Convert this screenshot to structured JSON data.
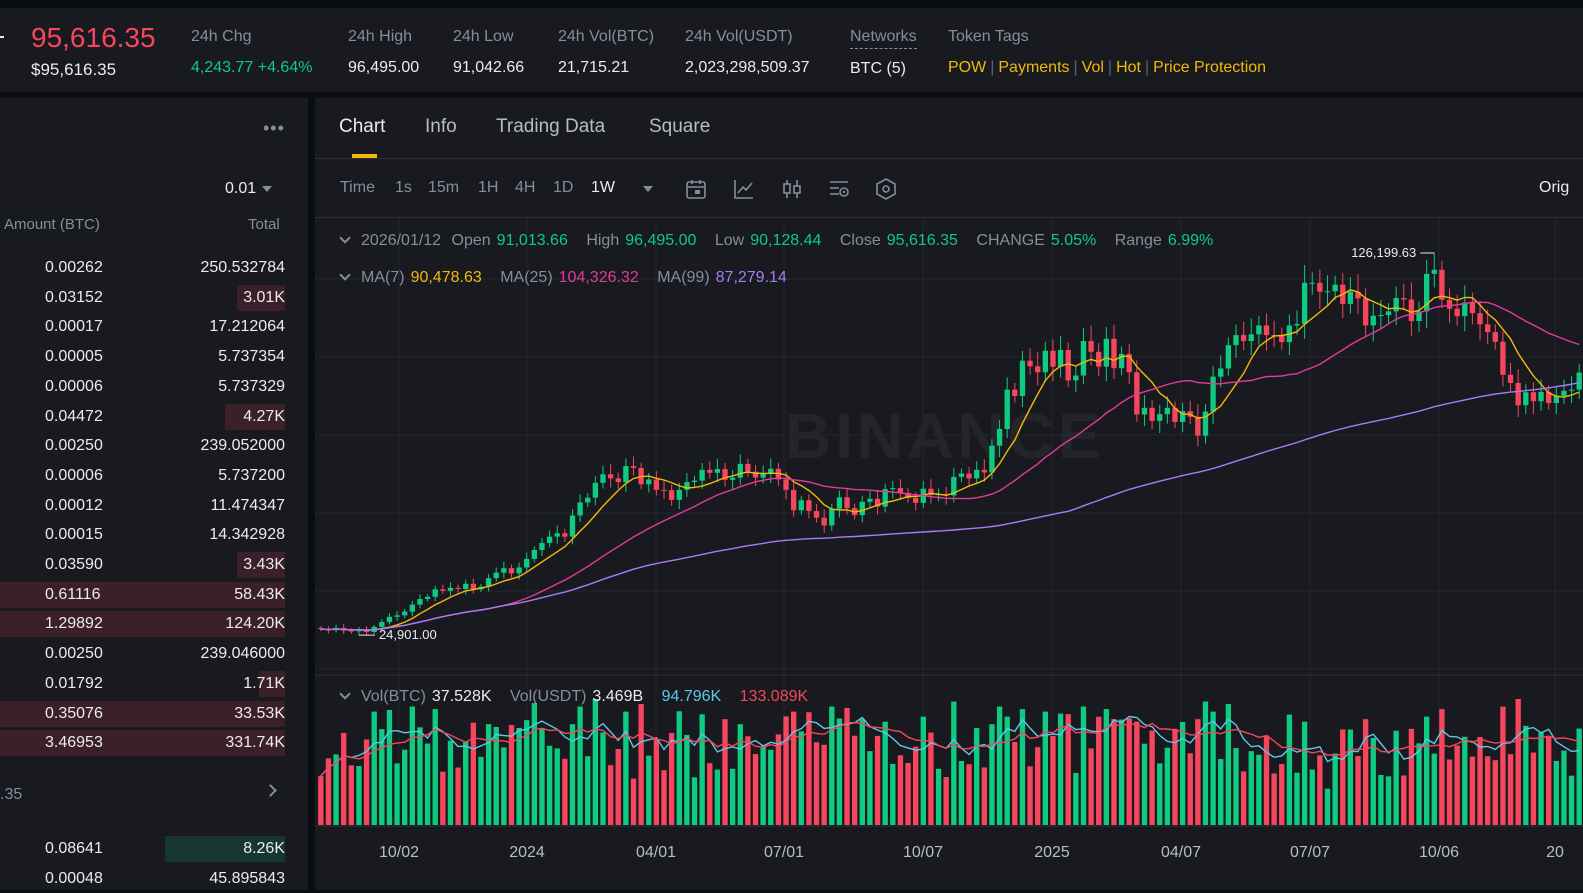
{
  "ticker": {
    "last_price": "95,616.35",
    "last_price_usd": "$95,616.35",
    "stats": [
      {
        "label": "24h Chg",
        "value": "4,243.77 +4.64%"
      },
      {
        "label": "24h High",
        "value": "96,495.00"
      },
      {
        "label": "24h Low",
        "value": "91,042.66"
      },
      {
        "label": "24h Vol(BTC)",
        "value": "21,715.21"
      },
      {
        "label": "24h Vol(USDT)",
        "value": "2,023,298,509.37"
      },
      {
        "label": "Networks",
        "value": "BTC (5)"
      },
      {
        "label": "Token Tags",
        "value": ""
      }
    ],
    "tags": [
      "POW",
      "Payments",
      "Vol",
      "Hot",
      "Price Protection"
    ]
  },
  "orderbook": {
    "menu_icon": "more-icon",
    "precision": "0.01",
    "col_amount": "Amount (BTC)",
    "col_total": "Total",
    "asks": [
      {
        "amount": "0.00262",
        "total": "250.532784",
        "depth": 0
      },
      {
        "amount": "0.03152",
        "total": "3.01K",
        "depth": 0.17
      },
      {
        "amount": "0.00017",
        "total": "17.212064",
        "depth": 0
      },
      {
        "amount": "0.00005",
        "total": "5.737354",
        "depth": 0
      },
      {
        "amount": "0.00006",
        "total": "5.737329",
        "depth": 0
      },
      {
        "amount": "0.04472",
        "total": "4.27K",
        "depth": 0.21
      },
      {
        "amount": "0.00250",
        "total": "239.052000",
        "depth": 0
      },
      {
        "amount": "0.00006",
        "total": "5.737200",
        "depth": 0
      },
      {
        "amount": "0.00012",
        "total": "11.474347",
        "depth": 0
      },
      {
        "amount": "0.00015",
        "total": "14.342928",
        "depth": 0
      },
      {
        "amount": "0.03590",
        "total": "3.43K",
        "depth": 0.17
      },
      {
        "amount": "0.61116",
        "total": "58.43K",
        "depth": 1
      },
      {
        "amount": "1.29892",
        "total": "124.20K",
        "depth": 1
      },
      {
        "amount": "0.00250",
        "total": "239.046000",
        "depth": 0
      },
      {
        "amount": "0.01792",
        "total": "1.71K",
        "depth": 0.09
      },
      {
        "amount": "0.35076",
        "total": "33.53K",
        "depth": 1
      },
      {
        "amount": "3.46953",
        "total": "331.74K",
        "depth": 1
      }
    ],
    "mid_price_fragment": ".35",
    "bids": [
      {
        "amount": "0.08641",
        "total": "8.26K",
        "depth": 0.42
      },
      {
        "amount": "0.00048",
        "total": "45.895843",
        "depth": 0
      }
    ]
  },
  "chart_panel": {
    "tabs": [
      "Chart",
      "Info",
      "Trading Data",
      "Square"
    ],
    "active_tab": "Chart",
    "timeframes": [
      "Time",
      "1s",
      "15m",
      "1H",
      "4H",
      "1D",
      "1W"
    ],
    "active_timeframe": "1W",
    "tool_icons": [
      "calendar-icon",
      "line-chart-icon",
      "candlestick-icon",
      "indicator-settings-icon",
      "hexagon-settings-icon"
    ],
    "view_mode": "Orig",
    "ohlc": {
      "date": "2026/01/12",
      "open_label": "Open",
      "open": "91,013.66",
      "high_label": "High",
      "high": "96,495.00",
      "low_label": "Low",
      "low": "90,128.44",
      "close_label": "Close",
      "close": "95,616.35",
      "change_label": "CHANGE",
      "change": "5.05%",
      "range_label": "Range",
      "range": "6.99%"
    },
    "ma": {
      "ma7_label": "MA(7)",
      "ma7": "90,478.63",
      "ma25_label": "MA(25)",
      "ma25": "104,326.32",
      "ma99_label": "MA(99)",
      "ma99": "87,279.14"
    },
    "volume_legend": {
      "label": "Vol(BTC)",
      "btc": "37.528K",
      "usdt_label": "Vol(USDT)",
      "usdt": "3.469B",
      "ma_a": "94.796K",
      "ma_b": "133.089K"
    },
    "annotations": {
      "max": "126,199.63",
      "min": "24,901.00"
    },
    "watermark": "BINANCE",
    "colors": {
      "up": "#0ecb81",
      "down": "#f6465d",
      "ma7": "#f0b90b",
      "ma25": "#e6399b",
      "ma99": "#a97cf2",
      "vol_ma_a": "#5ec8e8",
      "vol_ma_b": "#f6465d"
    }
  },
  "chart_data": {
    "type": "candlestick",
    "interval": "1W",
    "x_tick_labels": [
      "10/02",
      "2024",
      "04/01",
      "07/01",
      "10/07",
      "2025",
      "04/07",
      "07/07",
      "10/06",
      "20"
    ],
    "y_range": [
      20000,
      130000
    ],
    "closes": [
      26500,
      26200,
      26800,
      26100,
      25900,
      26300,
      25700,
      27100,
      28400,
      29800,
      30200,
      31200,
      33100,
      34600,
      35200,
      37200,
      36800,
      37600,
      37300,
      38700,
      37200,
      37900,
      40200,
      41700,
      42900,
      41500,
      43100,
      45400,
      47800,
      49700,
      51400,
      52300,
      51400,
      57100,
      60600,
      61900,
      65900,
      68200,
      67100,
      66100,
      70400,
      69900,
      65500,
      66800,
      64000,
      63900,
      61300,
      64000,
      66100,
      66500,
      69400,
      68600,
      69600,
      66700,
      67300,
      71000,
      68900,
      67300,
      68300,
      69700,
      66800,
      64000,
      58500,
      61200,
      58300,
      56500,
      54400,
      58900,
      62000,
      59100,
      57200,
      60800,
      61600,
      59500,
      64200,
      64500,
      63200,
      61800,
      60500,
      64300,
      62600,
      62900,
      62500,
      67500,
      68400,
      67100,
      69400,
      68700,
      75900,
      80400,
      91000,
      89300,
      98800,
      97300,
      95700,
      101500,
      97200,
      101700,
      93500,
      94800,
      104100,
      101200,
      97200,
      104700,
      96800,
      100600,
      95700,
      84300,
      86100,
      82600,
      84400,
      86100,
      82300,
      85200,
      83700,
      78600,
      85100,
      94500,
      96700,
      103000,
      105700,
      104100,
      105900,
      108300,
      105700,
      105600,
      103800,
      108300,
      108700,
      119800,
      119800,
      117400,
      117500,
      119300,
      114100,
      117400,
      115600,
      108300,
      110900,
      111100,
      112100,
      115700,
      115300,
      109500,
      112100,
      122200,
      123300,
      115200,
      112800,
      110800,
      114500,
      111600,
      108600,
      106500,
      103900,
      95000,
      92800,
      86800,
      90300,
      87900,
      90400,
      87400,
      89300,
      90700,
      91000,
      95600
    ],
    "ma_series": [
      "MA(7)",
      "MA(25)",
      "MA(99)"
    ],
    "volume_btc_latest": "37.528K"
  }
}
